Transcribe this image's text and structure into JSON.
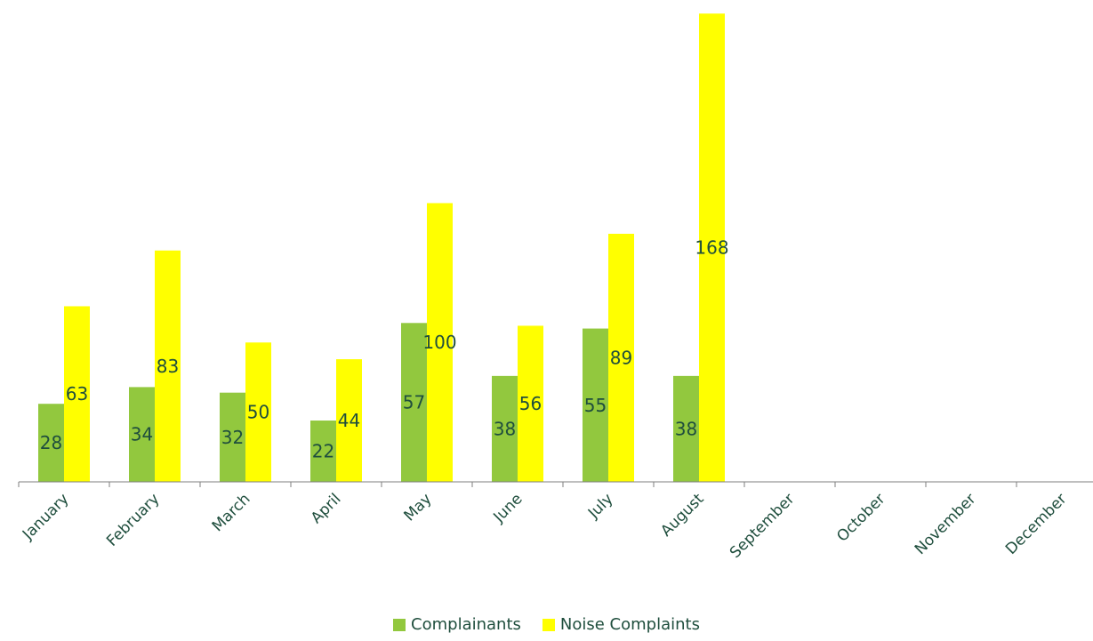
{
  "chart_data": {
    "type": "bar",
    "title": "",
    "xlabel": "",
    "ylabel": "",
    "ylim": [
      0,
      170
    ],
    "grid": false,
    "legend_position": "bottom",
    "categories": [
      "January",
      "February",
      "March",
      "April",
      "May",
      "June",
      "July",
      "August",
      "September",
      "October",
      "November",
      "December"
    ],
    "series": [
      {
        "name": "Complainants",
        "color": "#92c83e",
        "values": [
          28,
          34,
          32,
          22,
          57,
          38,
          55,
          38,
          null,
          null,
          null,
          null
        ]
      },
      {
        "name": "Noise Complaints",
        "color": "#ffff00",
        "values": [
          63,
          83,
          50,
          44,
          100,
          56,
          89,
          168,
          null,
          null,
          null,
          null
        ]
      }
    ],
    "axis_color": "#7f7f7f",
    "label_color": "#1f4e3d"
  }
}
